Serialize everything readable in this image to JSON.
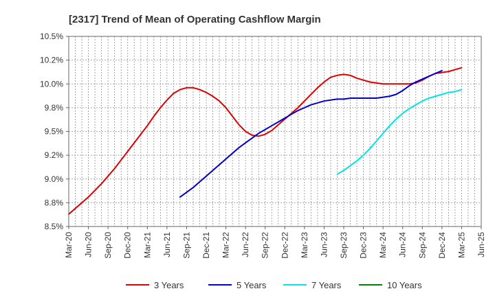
{
  "chart_data": {
    "type": "line",
    "title": "[2317]  Trend of Mean of Operating Cashflow Margin",
    "xlabel": "",
    "ylabel": "",
    "y_tick_labels": [
      "8.5%",
      "8.8%",
      "9.0%",
      "9.2%",
      "9.5%",
      "9.8%",
      "10.0%",
      "10.2%",
      "10.5%"
    ],
    "y_tick_values": [
      8.5,
      8.75,
      9.0,
      9.25,
      9.5,
      9.75,
      10.0,
      10.25,
      10.5
    ],
    "ylim": [
      8.5,
      10.5
    ],
    "x_tick_labels": [
      "Mar-20",
      "Jun-20",
      "Sep-20",
      "Dec-20",
      "Mar-21",
      "Jun-21",
      "Sep-21",
      "Dec-21",
      "Mar-22",
      "Jun-22",
      "Sep-22",
      "Dec-22",
      "Mar-23",
      "Jun-23",
      "Sep-23",
      "Dec-23",
      "Mar-24",
      "Jun-24",
      "Sep-24",
      "Dec-24",
      "Mar-25",
      "Jun-25"
    ],
    "grid": true,
    "legend_position": "bottom",
    "series": [
      {
        "name": "3 Years",
        "color": "#dd0000",
        "start": "Mar-20",
        "values": [
          8.63,
          8.69,
          8.75,
          8.81,
          8.88,
          8.95,
          9.03,
          9.11,
          9.2,
          9.29,
          9.38,
          9.47,
          9.56,
          9.66,
          9.75,
          9.83,
          9.9,
          9.94,
          9.96,
          9.96,
          9.94,
          9.91,
          9.87,
          9.82,
          9.75,
          9.66,
          9.57,
          9.5,
          9.46,
          9.45,
          9.47,
          9.51,
          9.57,
          9.63,
          9.69,
          9.75,
          9.82,
          9.89,
          9.96,
          10.02,
          10.07,
          10.09,
          10.1,
          10.09,
          10.06,
          10.04,
          10.02,
          10.01,
          10.0,
          10.0,
          10.0,
          10.0,
          10.0,
          10.01,
          10.04,
          10.08,
          10.11,
          10.12,
          10.13,
          10.15,
          10.17
        ]
      },
      {
        "name": "5 Years",
        "color": "#0000cc",
        "start": "Aug-21",
        "values": [
          8.81,
          8.86,
          8.91,
          8.97,
          9.03,
          9.09,
          9.15,
          9.21,
          9.27,
          9.33,
          9.38,
          9.43,
          9.48,
          9.52,
          9.56,
          9.6,
          9.64,
          9.68,
          9.72,
          9.75,
          9.78,
          9.8,
          9.82,
          9.83,
          9.84,
          9.84,
          9.85,
          9.85,
          9.85,
          9.85,
          9.85,
          9.86,
          9.87,
          9.89,
          9.93,
          9.98,
          10.02,
          10.05,
          10.08,
          10.11,
          10.14
        ]
      },
      {
        "name": "7 Years",
        "color": "#00e5e5",
        "start": "Aug-23",
        "values": [
          9.05,
          9.09,
          9.14,
          9.19,
          9.25,
          9.32,
          9.4,
          9.48,
          9.56,
          9.63,
          9.69,
          9.74,
          9.78,
          9.82,
          9.85,
          9.87,
          9.89,
          9.91,
          9.92,
          9.94
        ]
      },
      {
        "name": "10 Years",
        "color": "#008000",
        "start": "",
        "values": []
      }
    ]
  }
}
